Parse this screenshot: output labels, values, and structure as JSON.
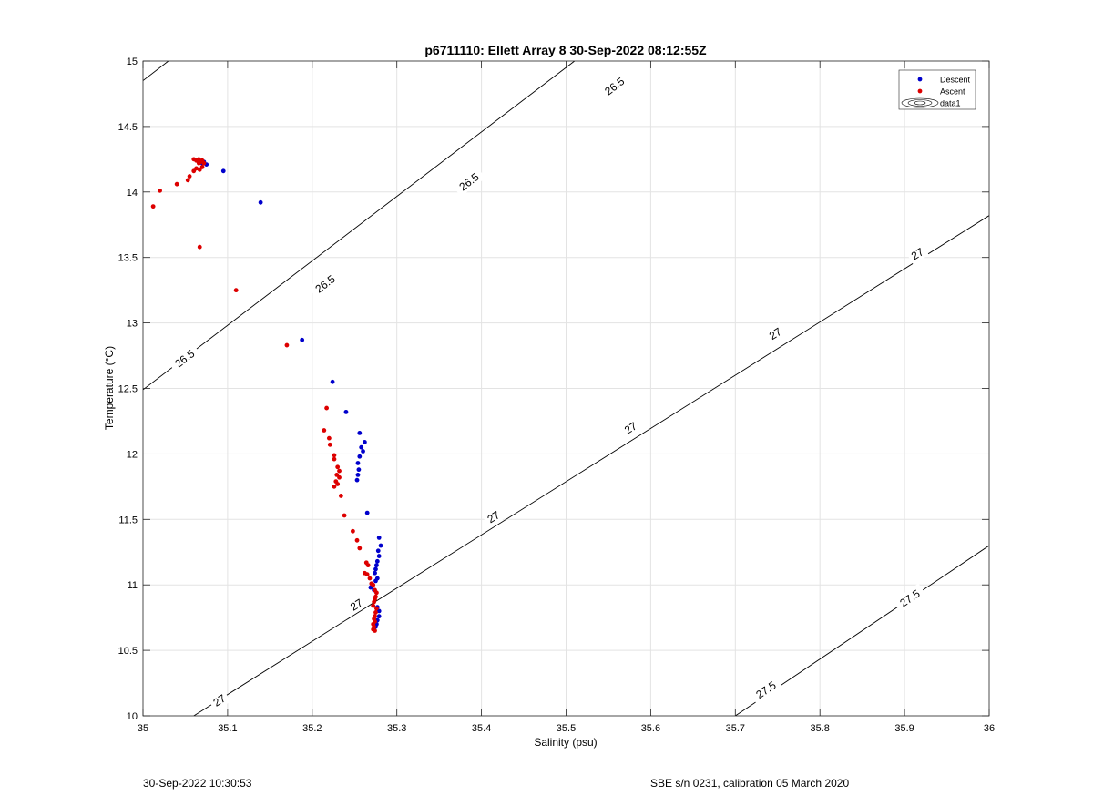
{
  "chart_data": {
    "type": "scatter",
    "title": "p6711110: Ellett Array 8 30-Sep-2022 08:12:55Z",
    "xlabel": "Salinity (psu)",
    "ylabel": "Temperature (°C)",
    "xlim": [
      35,
      36
    ],
    "ylim": [
      10,
      15
    ],
    "xticks": [
      35,
      35.1,
      35.2,
      35.3,
      35.4,
      35.5,
      35.6,
      35.7,
      35.8,
      35.9,
      36
    ],
    "xtick_labels": [
      "35",
      "35.1",
      "35.2",
      "35.3",
      "35.4",
      "35.5",
      "35.6",
      "35.7",
      "35.8",
      "35.9",
      "36"
    ],
    "yticks": [
      10,
      10.5,
      11,
      11.5,
      12,
      12.5,
      13,
      13.5,
      14,
      14.5,
      15
    ],
    "ytick_labels": [
      "10",
      "10.5",
      "11",
      "11.5",
      "12",
      "12.5",
      "13",
      "13.5",
      "14",
      "14.5",
      "15"
    ],
    "grid": true,
    "legend_position": "top-right",
    "legend": [
      "Descent",
      "Ascent",
      "data1"
    ],
    "series": [
      {
        "name": "Descent",
        "color": "#0000cc",
        "points": [
          [
            35.075,
            14.21
          ],
          [
            35.072,
            14.23
          ],
          [
            35.07,
            14.22
          ],
          [
            35.095,
            14.16
          ],
          [
            35.139,
            13.92
          ],
          [
            35.188,
            12.87
          ],
          [
            35.224,
            12.55
          ],
          [
            35.24,
            12.32
          ],
          [
            35.256,
            12.16
          ],
          [
            35.262,
            12.09
          ],
          [
            35.258,
            12.05
          ],
          [
            35.26,
            12.02
          ],
          [
            35.256,
            11.98
          ],
          [
            35.254,
            11.93
          ],
          [
            35.255,
            11.88
          ],
          [
            35.254,
            11.84
          ],
          [
            35.253,
            11.8
          ],
          [
            35.265,
            11.55
          ],
          [
            35.279,
            11.36
          ],
          [
            35.281,
            11.3
          ],
          [
            35.278,
            11.26
          ],
          [
            35.279,
            11.22
          ],
          [
            35.277,
            11.18
          ],
          [
            35.276,
            11.15
          ],
          [
            35.275,
            11.12
          ],
          [
            35.274,
            11.09
          ],
          [
            35.277,
            11.05
          ],
          [
            35.275,
            11.03
          ],
          [
            35.271,
            11.0
          ],
          [
            35.269,
            10.98
          ],
          [
            35.273,
            10.96
          ],
          [
            35.277,
            10.83
          ],
          [
            35.279,
            10.8
          ],
          [
            35.279,
            10.76
          ],
          [
            35.277,
            10.73
          ],
          [
            35.276,
            10.7
          ],
          [
            35.275,
            10.68
          ]
        ]
      },
      {
        "name": "Ascent",
        "color": "#dd0000",
        "points": [
          [
            35.012,
            13.89
          ],
          [
            35.02,
            14.01
          ],
          [
            35.04,
            14.06
          ],
          [
            35.053,
            14.09
          ],
          [
            35.055,
            14.12
          ],
          [
            35.06,
            14.16
          ],
          [
            35.063,
            14.18
          ],
          [
            35.067,
            14.17
          ],
          [
            35.07,
            14.19
          ],
          [
            35.072,
            14.22
          ],
          [
            35.066,
            14.22
          ],
          [
            35.063,
            14.24
          ],
          [
            35.06,
            14.25
          ],
          [
            35.066,
            14.25
          ],
          [
            35.07,
            14.24
          ],
          [
            35.068,
            14.23
          ],
          [
            35.067,
            13.58
          ],
          [
            35.11,
            13.25
          ],
          [
            35.17,
            12.83
          ],
          [
            35.217,
            12.35
          ],
          [
            35.214,
            12.18
          ],
          [
            35.22,
            12.12
          ],
          [
            35.221,
            12.07
          ],
          [
            35.226,
            11.99
          ],
          [
            35.226,
            11.96
          ],
          [
            35.23,
            11.9
          ],
          [
            35.232,
            11.87
          ],
          [
            35.229,
            11.84
          ],
          [
            35.232,
            11.82
          ],
          [
            35.228,
            11.79
          ],
          [
            35.23,
            11.77
          ],
          [
            35.226,
            11.75
          ],
          [
            35.234,
            11.68
          ],
          [
            35.238,
            11.53
          ],
          [
            35.248,
            11.41
          ],
          [
            35.253,
            11.34
          ],
          [
            35.256,
            11.28
          ],
          [
            35.264,
            11.17
          ],
          [
            35.266,
            11.15
          ],
          [
            35.262,
            11.09
          ],
          [
            35.265,
            11.08
          ],
          [
            35.268,
            11.05
          ],
          [
            35.27,
            11.01
          ],
          [
            35.272,
            11.0
          ],
          [
            35.274,
            10.96
          ],
          [
            35.276,
            10.94
          ],
          [
            35.275,
            10.91
          ],
          [
            35.274,
            10.89
          ],
          [
            35.273,
            10.87
          ],
          [
            35.272,
            10.84
          ],
          [
            35.276,
            10.82
          ],
          [
            35.275,
            10.79
          ],
          [
            35.274,
            10.76
          ],
          [
            35.273,
            10.74
          ],
          [
            35.274,
            10.72
          ],
          [
            35.272,
            10.7
          ],
          [
            35.273,
            10.68
          ],
          [
            35.272,
            10.66
          ],
          [
            35.274,
            10.65
          ]
        ]
      }
    ],
    "density_contours": [
      {
        "label": "26.5",
        "points": [
          [
            35,
            12.49
          ],
          [
            35.51,
            15
          ]
        ]
      },
      {
        "label": "26.5",
        "points": [
          [
            35,
            14.85
          ],
          [
            35.03,
            15
          ]
        ]
      },
      {
        "label": "27",
        "points": [
          [
            35.06,
            10
          ],
          [
            36,
            13.82
          ]
        ]
      },
      {
        "label": "27.5",
        "points": [
          [
            35.7,
            10
          ],
          [
            36,
            11.3
          ]
        ]
      }
    ],
    "contour_labels": [
      {
        "text": "26.5",
        "x": 35.049,
        "y": 12.73
      },
      {
        "text": "26.5",
        "x": 35.215,
        "y": 13.3
      },
      {
        "text": "26.5",
        "x": 35.385,
        "y": 14.08
      },
      {
        "text": "26.5",
        "x": 35.557,
        "y": 14.81
      },
      {
        "text": "27",
        "x": 35.09,
        "y": 10.12
      },
      {
        "text": "27",
        "x": 35.252,
        "y": 10.85
      },
      {
        "text": "27",
        "x": 35.414,
        "y": 11.52
      },
      {
        "text": "27",
        "x": 35.576,
        "y": 12.2
      },
      {
        "text": "27",
        "x": 35.747,
        "y": 12.92
      },
      {
        "text": "27",
        "x": 35.915,
        "y": 13.53
      },
      {
        "text": "27.5",
        "x": 35.736,
        "y": 10.2
      },
      {
        "text": "27.5",
        "x": 35.906,
        "y": 10.9
      }
    ]
  },
  "footer": {
    "timestamp": "30-Sep-2022 10:30:53",
    "calibration": "SBE s/n 0231, calibration 05 March 2020"
  }
}
